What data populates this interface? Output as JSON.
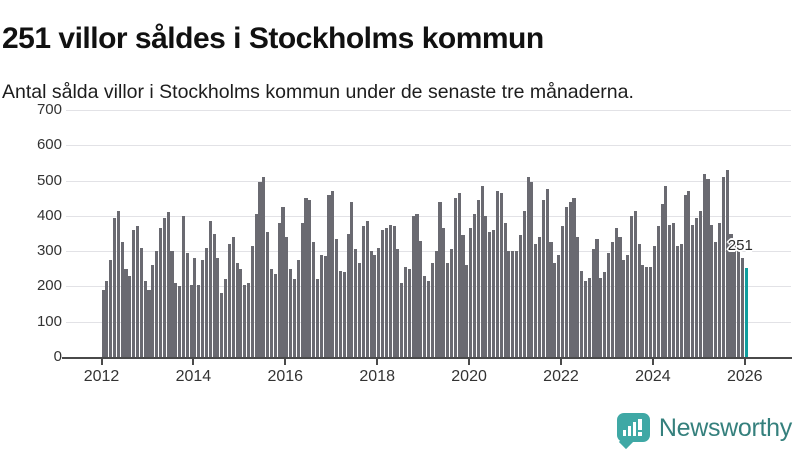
{
  "header": {
    "title": "251 villor såldes i Stockholms kommun",
    "subtitle": "Antal sålda villor i Stockholms kommun under de senaste tre månaderna."
  },
  "chart_data": {
    "type": "bar",
    "title": "251 villor såldes i Stockholms kommun",
    "xlabel": "",
    "ylabel": "",
    "ylim": [
      0,
      700
    ],
    "grid": true,
    "start": {
      "year": 2012,
      "month": 1,
      "frequency": "monthly"
    },
    "yticks": [
      0,
      100,
      200,
      300,
      400,
      500,
      600,
      700
    ],
    "xticks": [
      2012,
      2014,
      2016,
      2018,
      2020,
      2022,
      2024,
      2026
    ],
    "values": [
      190,
      215,
      275,
      395,
      415,
      325,
      250,
      230,
      360,
      370,
      310,
      215,
      190,
      260,
      300,
      365,
      395,
      410,
      300,
      210,
      200,
      400,
      295,
      205,
      280,
      205,
      275,
      310,
      385,
      350,
      280,
      180,
      220,
      320,
      340,
      265,
      250,
      205,
      210,
      315,
      405,
      495,
      510,
      355,
      250,
      235,
      380,
      425,
      340,
      250,
      220,
      275,
      380,
      450,
      445,
      325,
      220,
      290,
      285,
      460,
      470,
      335,
      245,
      240,
      350,
      440,
      305,
      265,
      370,
      385,
      300,
      290,
      310,
      360,
      365,
      375,
      370,
      305,
      210,
      255,
      250,
      400,
      405,
      330,
      230,
      215,
      265,
      300,
      440,
      365,
      265,
      305,
      450,
      465,
      345,
      260,
      365,
      405,
      445,
      485,
      400,
      355,
      360,
      470,
      465,
      380,
      300,
      300,
      300,
      345,
      415,
      510,
      495,
      320,
      340,
      445,
      475,
      325,
      265,
      290,
      370,
      425,
      440,
      450,
      340,
      245,
      215,
      225,
      305,
      335,
      225,
      240,
      295,
      325,
      365,
      340,
      275,
      290,
      400,
      415,
      320,
      260,
      255,
      255,
      315,
      370,
      435,
      485,
      375,
      380,
      315,
      320,
      460,
      470,
      375,
      395,
      415,
      520,
      505,
      375,
      325,
      380,
      510,
      530,
      350,
      320,
      300,
      280,
      251
    ],
    "highlight": {
      "index": 168,
      "value": 251,
      "label": "251",
      "color": "#109f9f"
    },
    "bar_color": "#6a6a71",
    "grid_color": "#e2e2e6",
    "axis_color": "#4a4a4a",
    "tick_text_color": "#333333"
  },
  "footer": {
    "brand": "Newsworthy",
    "logo_icon": "newsworthy-bars-icon",
    "icon_color": "#3fa8a5",
    "brand_color": "#35807d"
  }
}
